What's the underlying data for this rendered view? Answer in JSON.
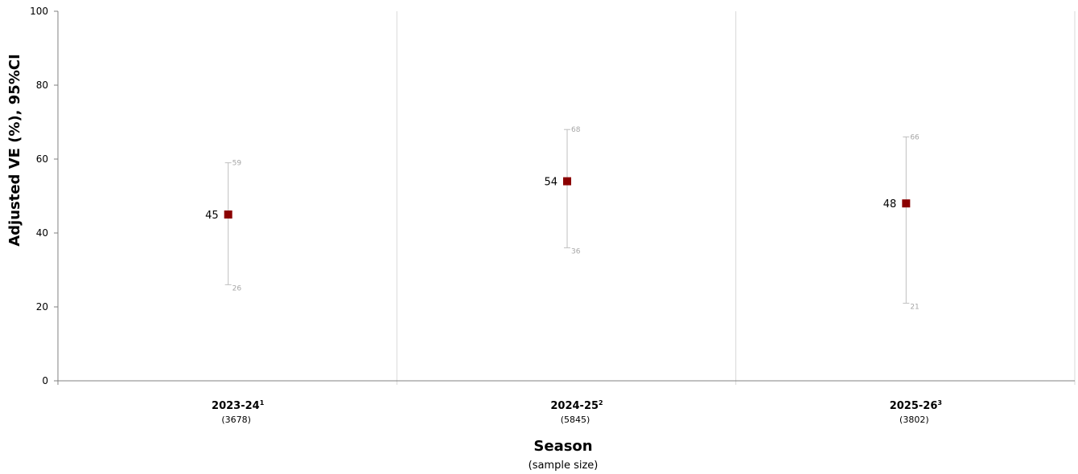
{
  "chart_data": {
    "type": "scatter",
    "ylabel": "Adjusted VE (%), 95%CI",
    "xlabel": "Season",
    "xlabel_sub": "(sample size)",
    "ylim": [
      0,
      100
    ],
    "yticks": [
      0,
      20,
      40,
      60,
      80,
      100
    ],
    "grid": "vertical separators between categories",
    "colors": {
      "point": "#8b0000",
      "ci": "#bfbfbf",
      "ci_label": "#a6a6a6",
      "axis": "#808080"
    },
    "categories": [
      {
        "label": "2023-24",
        "sup": "1",
        "n": "(3678)",
        "ve": 45,
        "lower": 26,
        "upper": 59
      },
      {
        "label": "2024-25",
        "sup": "2",
        "n": "(5845)",
        "ve": 54,
        "lower": 36,
        "upper": 68
      },
      {
        "label": "2025-26",
        "sup": "3",
        "n": "(3802)",
        "ve": 48,
        "lower": 21,
        "upper": 66
      }
    ]
  }
}
